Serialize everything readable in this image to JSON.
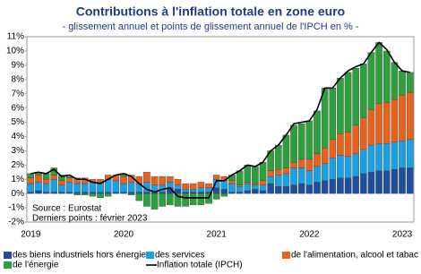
{
  "chart_data": {
    "type": "bar",
    "title": "Contributions à l'inflation totale en zone euro",
    "subtitle": "- glissement annuel et points de glissement annuel de l'IPCH en % -",
    "annotations": [
      "Source : Eurostat",
      "Derniers points : février 2023"
    ],
    "categories": [
      "2019",
      null,
      null,
      null,
      null,
      null,
      null,
      null,
      null,
      null,
      null,
      null,
      "2020",
      null,
      null,
      null,
      null,
      null,
      null,
      null,
      null,
      null,
      null,
      null,
      "2021",
      null,
      null,
      null,
      null,
      null,
      null,
      null,
      null,
      null,
      null,
      null,
      "2022",
      null,
      null,
      null,
      null,
      null,
      null,
      null,
      null,
      null,
      null,
      null,
      "2023",
      null
    ],
    "series": [
      {
        "name": "des biens industriels hors énergie",
        "color": "#1f4e9c",
        "values": [
          0.1,
          0.2,
          0.1,
          0.1,
          0.1,
          0.1,
          0.1,
          0.1,
          0.1,
          0.1,
          0.1,
          0.1,
          0.1,
          0.1,
          0.1,
          0.1,
          0.1,
          0.1,
          0.4,
          0.3,
          0.1,
          0.1,
          0.1,
          0.1,
          0.4,
          0.3,
          0.1,
          0.1,
          0.2,
          0.3,
          0.2,
          0.7,
          0.5,
          0.5,
          0.6,
          0.7,
          0.6,
          0.8,
          0.9,
          1.0,
          1.1,
          1.1,
          1.2,
          1.4,
          1.5,
          1.6,
          1.6,
          1.7,
          1.8,
          1.8
        ]
      },
      {
        "name": "des services",
        "color": "#1ba1e2",
        "values": [
          0.6,
          0.6,
          0.6,
          0.9,
          0.5,
          0.7,
          0.6,
          0.6,
          0.7,
          0.7,
          0.9,
          0.8,
          0.6,
          0.7,
          0.6,
          0.7,
          0.5,
          0.5,
          0.4,
          0.3,
          0.2,
          0.2,
          0.3,
          0.3,
          0.6,
          0.6,
          0.6,
          0.4,
          0.5,
          0.3,
          0.4,
          0.5,
          0.8,
          0.9,
          1.2,
          1.1,
          1.0,
          1.1,
          1.2,
          1.5,
          1.6,
          1.5,
          1.6,
          1.7,
          1.9,
          1.9,
          1.9,
          1.9,
          1.9,
          2.0
        ]
      },
      {
        "name": "de l'alimentation, alcool et tabac",
        "color": "#e8621e",
        "values": [
          0.4,
          0.5,
          0.3,
          0.3,
          0.3,
          0.3,
          0.4,
          0.4,
          0.2,
          0.2,
          0.3,
          0.4,
          0.5,
          0.5,
          0.5,
          0.7,
          0.6,
          0.6,
          0.4,
          0.4,
          0.4,
          0.4,
          0.4,
          0.3,
          0.3,
          0.3,
          0.2,
          0.1,
          0.1,
          0.1,
          0.3,
          0.4,
          0.4,
          0.4,
          0.4,
          0.6,
          0.8,
          0.9,
          1.1,
          1.3,
          1.5,
          1.7,
          2.0,
          2.2,
          2.5,
          2.8,
          2.9,
          3.0,
          3.2,
          3.3
        ]
      },
      {
        "name": "de l'énergie",
        "color": "#2e9e3e",
        "values": [
          0.3,
          0.2,
          0.4,
          0.5,
          0.4,
          0.1,
          -0.1,
          -0.1,
          -0.2,
          -0.3,
          -0.2,
          0.0,
          0.2,
          -0.1,
          -0.5,
          -0.9,
          -1.1,
          -0.9,
          -0.8,
          -0.9,
          -0.9,
          -0.8,
          -0.8,
          -0.7,
          -0.4,
          -0.2,
          0.4,
          1.0,
          1.2,
          1.2,
          1.3,
          1.4,
          1.7,
          2.3,
          2.6,
          2.5,
          2.7,
          3.0,
          4.2,
          3.6,
          3.9,
          4.2,
          4.0,
          3.8,
          4.0,
          4.3,
          3.6,
          2.6,
          1.7,
          1.4
        ]
      },
      {
        "name": "Inflation totale (IPCH)",
        "color": "#000000",
        "type": "line",
        "values": [
          1.4,
          1.5,
          1.4,
          1.7,
          1.2,
          1.3,
          1.0,
          1.0,
          0.8,
          0.7,
          1.0,
          1.3,
          1.4,
          1.2,
          0.7,
          0.3,
          0.1,
          0.3,
          0.4,
          -0.2,
          -0.3,
          -0.3,
          -0.3,
          -0.3,
          0.9,
          0.9,
          1.3,
          1.6,
          2.0,
          1.9,
          2.2,
          3.0,
          3.4,
          4.1,
          4.9,
          5.0,
          5.1,
          5.9,
          7.4,
          7.4,
          8.1,
          8.6,
          8.9,
          9.1,
          9.9,
          10.6,
          10.1,
          9.2,
          8.6,
          8.5
        ]
      }
    ],
    "ylim": [
      -2,
      11
    ],
    "yticks": [
      {
        "value": -2,
        "label": "-2%"
      },
      {
        "value": -1,
        "label": "-1%"
      },
      {
        "value": 0,
        "label": "0%"
      },
      {
        "value": 1,
        "label": "1%"
      },
      {
        "value": 2,
        "label": "2%"
      },
      {
        "value": 3,
        "label": "3%"
      },
      {
        "value": 4,
        "label": "4%"
      },
      {
        "value": 5,
        "label": "5%"
      },
      {
        "value": 6,
        "label": "6%"
      },
      {
        "value": 7,
        "label": "7%"
      },
      {
        "value": 8,
        "label": "8%"
      },
      {
        "value": 9,
        "label": "9%"
      },
      {
        "value": 10,
        "label": "10%"
      },
      {
        "value": 11,
        "label": "11%"
      }
    ],
    "grid": false
  }
}
